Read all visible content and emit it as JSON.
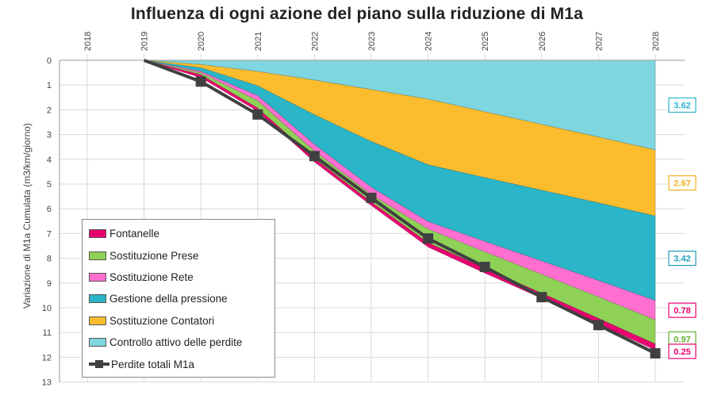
{
  "chart_data": {
    "type": "area",
    "title": "Influenza di ogni azione del piano sulla riduzione di M1a",
    "ylabel": "Variazione di M1a Cumulata (m3/km/giorno)",
    "xlabel": "",
    "x": [
      "2018",
      "2019",
      "2020",
      "2021",
      "2022",
      "2023",
      "2024",
      "2025",
      "2026",
      "2027",
      "2028"
    ],
    "ylim": [
      0,
      13
    ],
    "y_inverted": true,
    "yticks": [
      0,
      1,
      2,
      3,
      4,
      5,
      6,
      7,
      8,
      9,
      10,
      11,
      12,
      13
    ],
    "x_axis_position": "top",
    "grid": true,
    "legend_position": "bottom-left",
    "stack_order": "from top (y=0) downward: Controllo attivo delle perdite, Sostituzione Contatori, Gestione della pressione, Sostituzione Rete, Sostituzione Prese, Fontanelle",
    "series": [
      {
        "name": "Controllo attivo delle perdite",
        "color": "#7dd6e0",
        "values": [
          null,
          0,
          0.17,
          0.45,
          0.8,
          1.18,
          1.57,
          2.08,
          2.59,
          3.1,
          3.62
        ]
      },
      {
        "name": "Sostituzione Contatori",
        "color": "#fbbd2e",
        "values": [
          null,
          0,
          0.13,
          0.58,
          1.4,
          2.1,
          2.65,
          2.66,
          2.66,
          2.66,
          2.67
        ]
      },
      {
        "name": "Gestione della pressione",
        "color": "#2ab5c8",
        "values": [
          null,
          0,
          0.15,
          0.4,
          1.2,
          1.85,
          2.3,
          2.58,
          2.86,
          3.14,
          3.42
        ]
      },
      {
        "name": "Sostituzione Rete",
        "color": "#ff6fd0",
        "values": [
          null,
          0,
          0.06,
          0.2,
          0.27,
          0.3,
          0.3,
          0.42,
          0.54,
          0.66,
          0.78
        ]
      },
      {
        "name": "Sostituzione Prese",
        "color": "#8ed156",
        "values": [
          null,
          0,
          0.07,
          0.3,
          0.3,
          0.3,
          0.55,
          0.66,
          0.76,
          0.87,
          0.97
        ]
      },
      {
        "name": "Fontanelle",
        "color": "#e8006f",
        "values": [
          null,
          0,
          0.12,
          0.13,
          0.14,
          0.14,
          0.18,
          0.2,
          0.21,
          0.23,
          0.25
        ]
      }
    ],
    "total_series": {
      "name": "Perdite totali M1a",
      "color": "#404040",
      "values": [
        null,
        0,
        0.86,
        2.19,
        3.87,
        5.56,
        7.2,
        8.35,
        9.57,
        10.7,
        11.84
      ]
    },
    "value_labels": [
      {
        "text": "3.62",
        "color": "#2ab5c8"
      },
      {
        "text": "2.67",
        "color": "#f0b020"
      },
      {
        "text": "3.42",
        "color": "#1e9fb4"
      },
      {
        "text": "0.78",
        "color": "#e8006f"
      },
      {
        "text": "0.97",
        "color": "#5fb030"
      },
      {
        "text": "0.25",
        "color": "#e8006f"
      }
    ],
    "legend": [
      {
        "label": "Fontanelle",
        "color": "#e8006f",
        "kind": "area"
      },
      {
        "label": "Sostituzione Prese",
        "color": "#8ed156",
        "kind": "area"
      },
      {
        "label": "Sostituzione Rete",
        "color": "#ff6fd0",
        "kind": "area"
      },
      {
        "label": "Gestione della pressione",
        "color": "#2ab5c8",
        "kind": "area"
      },
      {
        "label": "Sostituzione Contatori",
        "color": "#fbbd2e",
        "kind": "area"
      },
      {
        "label": "Controllo attivo delle perdite",
        "color": "#7dd6e0",
        "kind": "area"
      },
      {
        "label": "Perdite totali M1a",
        "color": "#404040",
        "kind": "line"
      }
    ]
  }
}
